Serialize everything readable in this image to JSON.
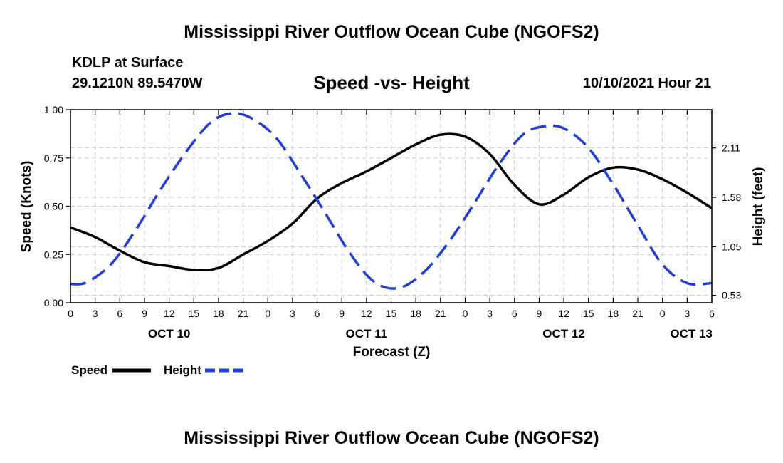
{
  "chart_data": {
    "type": "line",
    "title": "Mississippi River Outflow Ocean Cube (NGOFS2)",
    "footer_title": "Mississippi River Outflow Ocean Cube (NGOFS2)",
    "station": "KDLP at Surface",
    "location": "29.1210N  89.5470W",
    "subtitle": "Speed -vs- Height",
    "datetime": "10/10/2021 Hour 21",
    "xlabel": "Forecast (Z)",
    "ylabel_left": "Speed (Knots)",
    "ylabel_right": "Height (feet)",
    "x_unit": "hours",
    "xlim": [
      0,
      78
    ],
    "ylim_left": [
      0,
      1.0
    ],
    "ylim_right": [
      0.45,
      2.52
    ],
    "left_ticks": [
      0,
      0.25,
      0.5,
      0.75,
      1.0
    ],
    "left_tick_labels": [
      "0.00",
      "0.25",
      "0.50",
      "0.75",
      "1.00"
    ],
    "right_ticks": [
      0.53,
      1.05,
      1.58,
      2.11
    ],
    "right_tick_labels": [
      "0.53",
      "1.05",
      "1.58",
      "2.11"
    ],
    "x_ticks": [
      0,
      3,
      6,
      9,
      12,
      15,
      18,
      21,
      24,
      27,
      30,
      33,
      36,
      39,
      42,
      45,
      48,
      51,
      54,
      57,
      60,
      63,
      66,
      69,
      72,
      75,
      78
    ],
    "x_tick_labels": [
      "0",
      "3",
      "6",
      "9",
      "12",
      "15",
      "18",
      "21",
      "0",
      "3",
      "6",
      "9",
      "12",
      "15",
      "18",
      "21",
      "0",
      "3",
      "6",
      "9",
      "12",
      "15",
      "18",
      "21",
      "0",
      "3",
      "6"
    ],
    "day_labels": [
      {
        "x": 12,
        "text": "OCT 10"
      },
      {
        "x": 36,
        "text": "OCT 11"
      },
      {
        "x": 60,
        "text": "OCT 12"
      },
      {
        "x": 75.5,
        "text": "OCT 13"
      }
    ],
    "grid": true,
    "legend_position": "bottom-left",
    "series": [
      {
        "name": "Speed",
        "axis": "left",
        "style": "solid",
        "color": "#000000",
        "x": [
          0,
          3,
          6,
          9,
          12,
          15,
          18,
          21,
          24,
          27,
          30,
          33,
          36,
          39,
          42,
          45,
          48,
          51,
          54,
          57,
          60,
          63,
          66,
          69,
          72,
          75,
          78
        ],
        "y": [
          0.39,
          0.34,
          0.27,
          0.21,
          0.19,
          0.17,
          0.18,
          0.25,
          0.32,
          0.41,
          0.54,
          0.62,
          0.68,
          0.75,
          0.82,
          0.87,
          0.86,
          0.77,
          0.61,
          0.51,
          0.56,
          0.65,
          0.7,
          0.69,
          0.64,
          0.57,
          0.49
        ]
      },
      {
        "name": "Height",
        "axis": "right",
        "style": "dashed",
        "color": "#1f3fd6",
        "x": [
          0,
          2,
          5,
          8,
          11,
          14,
          17,
          19.5,
          22,
          25,
          28,
          31,
          34,
          37,
          40,
          43,
          46,
          49,
          52,
          55,
          57.5,
          60,
          63,
          66,
          69,
          72,
          75,
          78
        ],
        "y": [
          0.65,
          0.67,
          0.87,
          1.24,
          1.67,
          2.06,
          2.38,
          2.48,
          2.43,
          2.22,
          1.83,
          1.41,
          0.98,
          0.67,
          0.61,
          0.78,
          1.1,
          1.5,
          1.92,
          2.25,
          2.34,
          2.32,
          2.11,
          1.72,
          1.28,
          0.86,
          0.66,
          0.66
        ]
      }
    ],
    "legend": [
      {
        "label": "Speed",
        "style": "solid",
        "color": "#000000"
      },
      {
        "label": "Height",
        "style": "dashed",
        "color": "#1f3fd6"
      }
    ]
  }
}
